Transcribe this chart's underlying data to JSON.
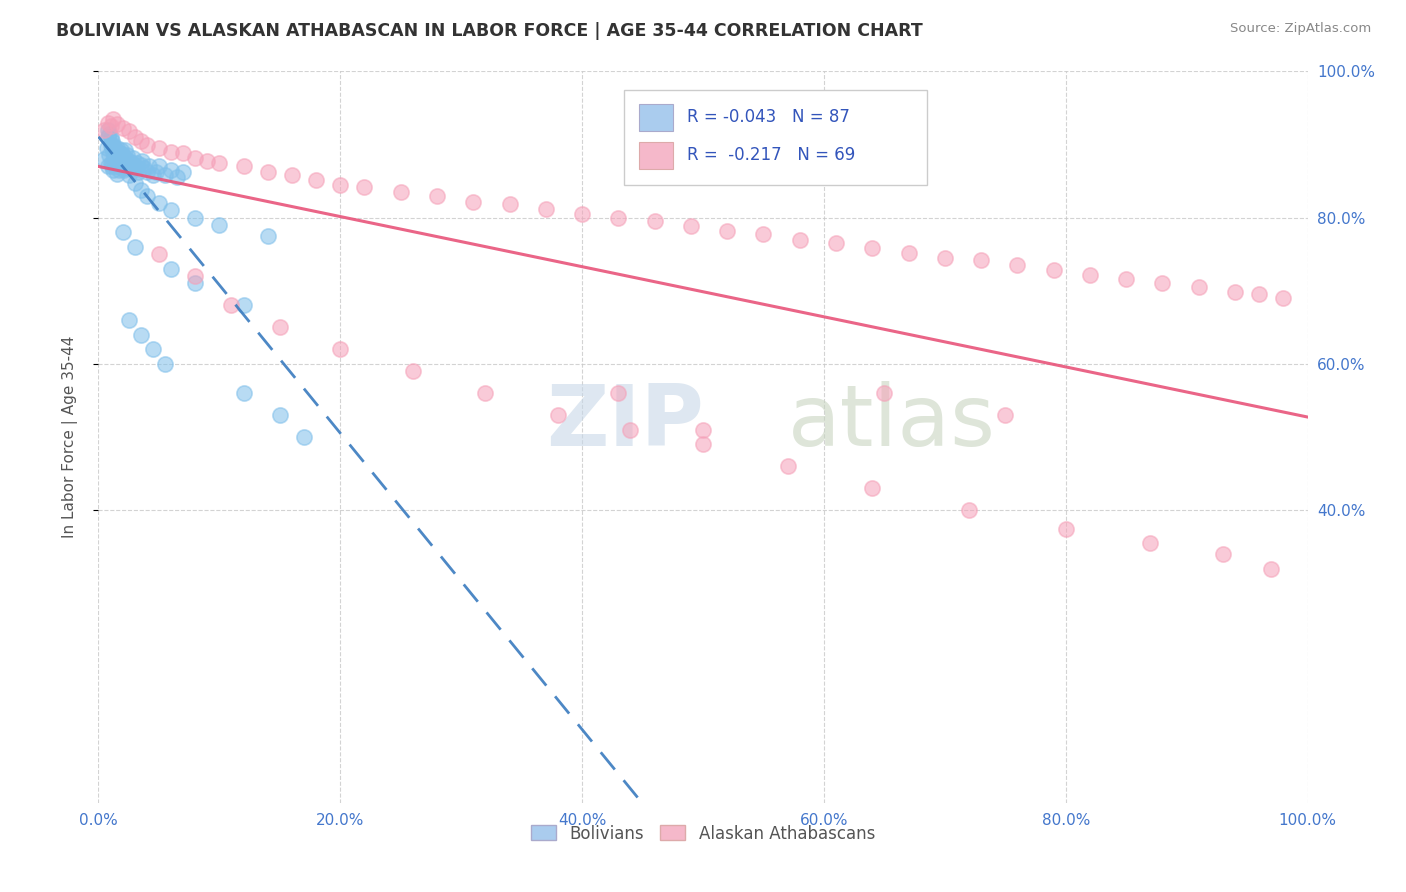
{
  "title": "BOLIVIAN VS ALASKAN ATHABASCAN IN LABOR FORCE | AGE 35-44 CORRELATION CHART",
  "source_text": "Source: ZipAtlas.com",
  "ylabel": "In Labor Force | Age 35-44",
  "xlim": [
    0.0,
    1.0
  ],
  "ylim": [
    0.0,
    1.0
  ],
  "xticks": [
    0.0,
    0.2,
    0.4,
    0.6,
    0.8,
    1.0
  ],
  "yticks": [
    0.4,
    0.6,
    0.8,
    1.0
  ],
  "xticklabels": [
    "0.0%",
    "20.0%",
    "40.0%",
    "60.0%",
    "80.0%",
    "100.0%"
  ],
  "yticklabels_right": [
    "40.0%",
    "60.0%",
    "80.0%",
    "100.0%"
  ],
  "R_bolivian": -0.043,
  "N_bolivian": 87,
  "R_athabascan": -0.217,
  "N_athabascan": 69,
  "blue_color": "#7fbfea",
  "pink_color": "#f5a0b8",
  "blue_line_color": "#3a7bbf",
  "pink_line_color": "#e8547a",
  "watermark_zip": "ZIP",
  "watermark_atlas": "atlas",
  "background_color": "#ffffff",
  "grid_color": "#c8c8c8",
  "legend_r1": "R = -0.043   N = 87",
  "legend_r2": "R =  -0.217   N = 69",
  "legend_color1": "#aaccee",
  "legend_color2": "#f5b8ca",
  "legend_text_color": "#3355bb",
  "tick_label_color": "#4477cc",
  "blue_pts_x": [
    0.005,
    0.007,
    0.008,
    0.008,
    0.009,
    0.01,
    0.01,
    0.011,
    0.011,
    0.012,
    0.012,
    0.013,
    0.013,
    0.014,
    0.014,
    0.015,
    0.015,
    0.015,
    0.016,
    0.016,
    0.017,
    0.017,
    0.018,
    0.018,
    0.019,
    0.019,
    0.02,
    0.02,
    0.021,
    0.021,
    0.022,
    0.022,
    0.023,
    0.024,
    0.024,
    0.025,
    0.026,
    0.027,
    0.028,
    0.029,
    0.03,
    0.031,
    0.032,
    0.033,
    0.035,
    0.036,
    0.038,
    0.04,
    0.042,
    0.045,
    0.048,
    0.05,
    0.055,
    0.06,
    0.065,
    0.07,
    0.008,
    0.009,
    0.01,
    0.011,
    0.012,
    0.013,
    0.014,
    0.016,
    0.018,
    0.02,
    0.025,
    0.03,
    0.035,
    0.04,
    0.05,
    0.06,
    0.08,
    0.1,
    0.14,
    0.02,
    0.03,
    0.06,
    0.08,
    0.12,
    0.025,
    0.035,
    0.045,
    0.055,
    0.12,
    0.15,
    0.17
  ],
  "blue_pts_y": [
    0.88,
    0.895,
    0.87,
    0.91,
    0.885,
    0.875,
    0.9,
    0.87,
    0.895,
    0.865,
    0.89,
    0.88,
    0.895,
    0.87,
    0.885,
    0.86,
    0.88,
    0.895,
    0.875,
    0.89,
    0.865,
    0.88,
    0.87,
    0.888,
    0.875,
    0.892,
    0.87,
    0.885,
    0.865,
    0.882,
    0.878,
    0.892,
    0.88,
    0.868,
    0.885,
    0.878,
    0.872,
    0.868,
    0.875,
    0.882,
    0.87,
    0.868,
    0.875,
    0.862,
    0.872,
    0.878,
    0.868,
    0.862,
    0.87,
    0.858,
    0.862,
    0.87,
    0.858,
    0.865,
    0.855,
    0.862,
    0.92,
    0.915,
    0.91,
    0.905,
    0.9,
    0.895,
    0.888,
    0.882,
    0.875,
    0.868,
    0.858,
    0.848,
    0.838,
    0.83,
    0.82,
    0.81,
    0.8,
    0.79,
    0.775,
    0.78,
    0.76,
    0.73,
    0.71,
    0.68,
    0.66,
    0.64,
    0.62,
    0.6,
    0.56,
    0.53,
    0.5
  ],
  "pink_pts_x": [
    0.005,
    0.008,
    0.01,
    0.012,
    0.015,
    0.02,
    0.025,
    0.03,
    0.035,
    0.04,
    0.05,
    0.06,
    0.07,
    0.08,
    0.09,
    0.1,
    0.12,
    0.14,
    0.16,
    0.18,
    0.2,
    0.22,
    0.25,
    0.28,
    0.31,
    0.34,
    0.37,
    0.4,
    0.43,
    0.46,
    0.49,
    0.52,
    0.55,
    0.58,
    0.61,
    0.64,
    0.67,
    0.7,
    0.73,
    0.76,
    0.79,
    0.82,
    0.85,
    0.88,
    0.91,
    0.94,
    0.96,
    0.98,
    0.05,
    0.08,
    0.11,
    0.15,
    0.2,
    0.26,
    0.32,
    0.38,
    0.44,
    0.5,
    0.57,
    0.64,
    0.72,
    0.8,
    0.87,
    0.93,
    0.97,
    0.43,
    0.5,
    0.65,
    0.75
  ],
  "pink_pts_y": [
    0.92,
    0.93,
    0.925,
    0.935,
    0.928,
    0.922,
    0.918,
    0.91,
    0.905,
    0.9,
    0.895,
    0.89,
    0.888,
    0.882,
    0.878,
    0.875,
    0.87,
    0.862,
    0.858,
    0.852,
    0.845,
    0.842,
    0.835,
    0.83,
    0.822,
    0.818,
    0.812,
    0.805,
    0.8,
    0.795,
    0.788,
    0.782,
    0.778,
    0.77,
    0.765,
    0.758,
    0.752,
    0.745,
    0.742,
    0.735,
    0.728,
    0.722,
    0.716,
    0.71,
    0.705,
    0.698,
    0.695,
    0.69,
    0.75,
    0.72,
    0.68,
    0.65,
    0.62,
    0.59,
    0.56,
    0.53,
    0.51,
    0.49,
    0.46,
    0.43,
    0.4,
    0.375,
    0.355,
    0.34,
    0.32,
    0.56,
    0.51,
    0.56,
    0.53
  ]
}
